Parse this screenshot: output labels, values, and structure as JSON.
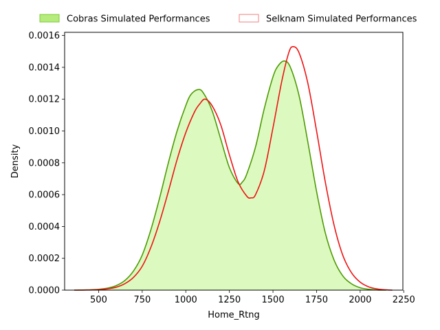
{
  "chart_data": {
    "type": "area",
    "title": "",
    "xlabel": "Home_Rtng",
    "ylabel": "Density",
    "xlim": [
      305,
      2245
    ],
    "ylim": [
      0,
      0.00162
    ],
    "xticks": [
      500,
      750,
      1000,
      1250,
      1500,
      1750,
      2000,
      2250
    ],
    "xtick_labels": [
      "500",
      "750",
      "1000",
      "1250",
      "1500",
      "1750",
      "2000",
      "2250"
    ],
    "yticks": [
      0,
      0.0002,
      0.0004,
      0.0006,
      0.0008,
      0.001,
      0.0012,
      0.0014,
      0.0016
    ],
    "ytick_labels": [
      "0.0000",
      "0.0002",
      "0.0004",
      "0.0006",
      "0.0008",
      "0.0010",
      "0.0012",
      "0.0014",
      "0.0016"
    ],
    "grid": false,
    "legend_position": "top",
    "series": [
      {
        "name": "Cobras Simulated Performances",
        "fill": true,
        "line_color": "#4c9900",
        "fill_color": "#dcfac0",
        "legend_fill": "#b6ec7e",
        "legend_edge": "#7ccc33",
        "points": [
          [
            360,
            0.0
          ],
          [
            450,
            2e-06
          ],
          [
            500,
            5e-06
          ],
          [
            550,
            1.2e-05
          ],
          [
            600,
            2.8e-05
          ],
          [
            650,
            6e-05
          ],
          [
            700,
            0.00012
          ],
          [
            750,
            0.00022
          ],
          [
            800,
            0.00038
          ],
          [
            850,
            0.00058
          ],
          [
            900,
            0.0008
          ],
          [
            950,
            0.001
          ],
          [
            1000,
            0.00116
          ],
          [
            1030,
            0.00123
          ],
          [
            1070,
            0.00126
          ],
          [
            1100,
            0.00124
          ],
          [
            1150,
            0.00113
          ],
          [
            1200,
            0.00095
          ],
          [
            1250,
            0.00077
          ],
          [
            1300,
            0.00067
          ],
          [
            1325,
            0.00068
          ],
          [
            1350,
            0.00073
          ],
          [
            1400,
            0.0009
          ],
          [
            1450,
            0.00114
          ],
          [
            1500,
            0.00134
          ],
          [
            1530,
            0.00141
          ],
          [
            1565,
            0.00144
          ],
          [
            1600,
            0.0014
          ],
          [
            1650,
            0.00122
          ],
          [
            1700,
            0.00093
          ],
          [
            1750,
            0.00062
          ],
          [
            1800,
            0.00036
          ],
          [
            1850,
            0.00019
          ],
          [
            1900,
            9e-05
          ],
          [
            1950,
            4e-05
          ],
          [
            2000,
            1.5e-05
          ],
          [
            2050,
            5e-06
          ],
          [
            2100,
            1e-06
          ],
          [
            2150,
            0.0
          ]
        ]
      },
      {
        "name": "Selknam Simulated Performances",
        "fill": false,
        "line_color": "#ee1111",
        "legend_fill": "#ffffff",
        "legend_edge": "#f08080",
        "points": [
          [
            360,
            0.0
          ],
          [
            450,
            1e-06
          ],
          [
            500,
            3e-06
          ],
          [
            550,
            8e-06
          ],
          [
            600,
            1.8e-05
          ],
          [
            650,
            4e-05
          ],
          [
            700,
            8e-05
          ],
          [
            750,
            0.00015
          ],
          [
            800,
            0.00027
          ],
          [
            850,
            0.00043
          ],
          [
            900,
            0.00062
          ],
          [
            950,
            0.00082
          ],
          [
            1000,
            0.00099
          ],
          [
            1050,
            0.00112
          ],
          [
            1080,
            0.00117
          ],
          [
            1110,
            0.0012
          ],
          [
            1150,
            0.00116
          ],
          [
            1200,
            0.00104
          ],
          [
            1250,
            0.00085
          ],
          [
            1300,
            0.00068
          ],
          [
            1350,
            0.00059
          ],
          [
            1375,
            0.00058
          ],
          [
            1400,
            0.0006
          ],
          [
            1450,
            0.00075
          ],
          [
            1500,
            0.00102
          ],
          [
            1550,
            0.00131
          ],
          [
            1590,
            0.00149
          ],
          [
            1615,
            0.00153
          ],
          [
            1650,
            0.00149
          ],
          [
            1700,
            0.0013
          ],
          [
            1750,
            0.001
          ],
          [
            1800,
            0.00068
          ],
          [
            1850,
            0.00041
          ],
          [
            1900,
            0.00022
          ],
          [
            1950,
            0.00011
          ],
          [
            2000,
            5e-05
          ],
          [
            2050,
            2e-05
          ],
          [
            2100,
            7e-06
          ],
          [
            2150,
            2e-06
          ],
          [
            2185,
            0.0
          ]
        ]
      }
    ]
  }
}
